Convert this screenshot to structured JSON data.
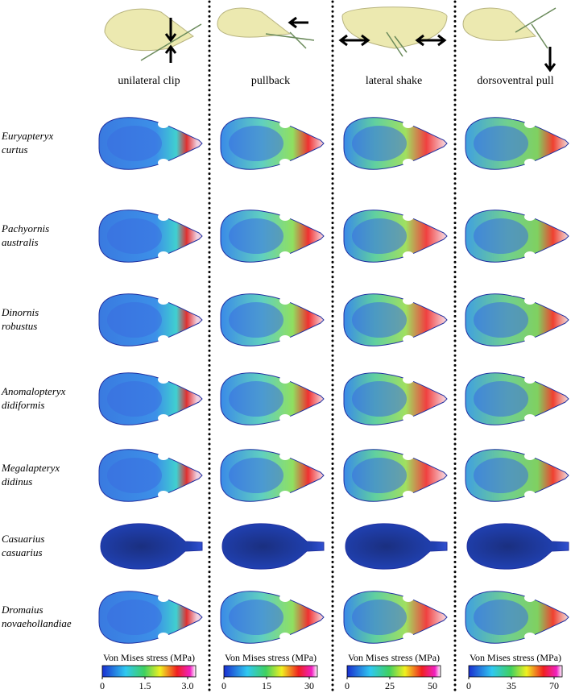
{
  "columns": [
    "unilateral clip",
    "pullback",
    "lateral shake",
    "dorsoventral pull"
  ],
  "species": [
    [
      "Euryapteryx",
      "curtus"
    ],
    [
      "Pachyornis",
      "australis"
    ],
    [
      "Dinornis",
      "robustus"
    ],
    [
      "Anomalopteryx",
      "didiformis"
    ],
    [
      "Megalapteryx",
      "didinus"
    ],
    [
      "Casuarius",
      "casuarius"
    ],
    [
      "Dromaius",
      "novaehollandiae"
    ]
  ],
  "colorbars": [
    {
      "title": "Von Mises stress (MPa)",
      "ticks": [
        "0",
        "1.5",
        "3.0"
      ]
    },
    {
      "title": "Von Mises stress (MPa)",
      "ticks": [
        "0",
        "15",
        "30"
      ]
    },
    {
      "title": "Von Mises stress (MPa)",
      "ticks": [
        "0",
        "25",
        "50"
      ]
    },
    {
      "title": "Von Mises stress (MPa)",
      "ticks": [
        "0",
        "35",
        "70"
      ]
    }
  ]
}
